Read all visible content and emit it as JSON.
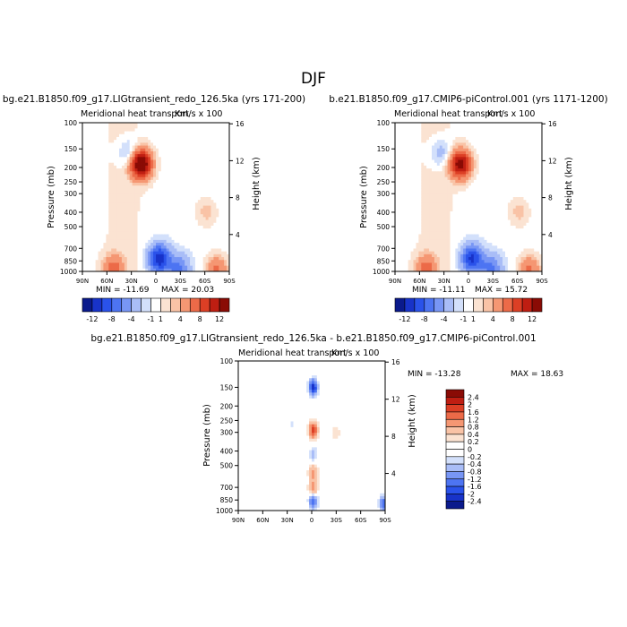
{
  "page_title": "DJF",
  "chart_data": [
    {
      "type": "heatmap",
      "title": "bg.e21.B1850.f09_g17.LIGtransient_redo_126.5ka (yrs 171-200)",
      "subtitle": "Meridional heat transport",
      "units": "Km/s x 100",
      "xlabel": "",
      "ylabel": "Pressure (mb)",
      "y2label": "Height (km)",
      "x_ticks": [
        "90N",
        "60N",
        "30N",
        "0",
        "30S",
        "60S",
        "90S"
      ],
      "y_ticks": [
        100,
        150,
        200,
        250,
        300,
        400,
        500,
        700,
        850,
        1000
      ],
      "y2_ticks": [
        4,
        8,
        12,
        16
      ],
      "ylim": [
        1000,
        100
      ],
      "min_label": "MIN = -11.69",
      "max_label": "MAX = 20.03",
      "features": [
        {
          "lat": 18,
          "p": 190,
          "value": 14
        },
        {
          "lat": 33,
          "p": 160,
          "value": -3
        },
        {
          "lat": -4,
          "p": 820,
          "value": -11
        },
        {
          "lat": -28,
          "p": 960,
          "value": -6
        },
        {
          "lat": 52,
          "p": 960,
          "value": 5
        },
        {
          "lat": -62,
          "p": 400,
          "value": 2
        },
        {
          "lat": -75,
          "p": 970,
          "value": 5
        }
      ]
    },
    {
      "type": "heatmap",
      "title": "b.e21.B1850.f09_g17.CMIP6-piControl.001 (yrs 1171-1200)",
      "subtitle": "Meridional heat transport",
      "units": "Km/s x 100",
      "xlabel": "",
      "ylabel": "Pressure (mb)",
      "y2label": "Height (km)",
      "x_ticks": [
        "90N",
        "60N",
        "30N",
        "0",
        "30S",
        "60S",
        "90S"
      ],
      "y_ticks": [
        100,
        150,
        200,
        250,
        300,
        400,
        500,
        700,
        850,
        1000
      ],
      "y2_ticks": [
        4,
        8,
        12,
        16
      ],
      "ylim": [
        1000,
        100
      ],
      "min_label": "MIN = -11.11",
      "max_label": "MAX = 15.72",
      "features": [
        {
          "lat": 10,
          "p": 190,
          "value": 12
        },
        {
          "lat": 33,
          "p": 160,
          "value": -3
        },
        {
          "lat": -4,
          "p": 820,
          "value": -10
        },
        {
          "lat": -28,
          "p": 960,
          "value": -6
        },
        {
          "lat": 52,
          "p": 960,
          "value": 5
        },
        {
          "lat": -62,
          "p": 400,
          "value": 2
        },
        {
          "lat": -75,
          "p": 970,
          "value": 5
        }
      ]
    },
    {
      "type": "heatmap",
      "title": "bg.e21.B1850.f09_g17.LIGtransient_redo_126.5ka - b.e21.B1850.f09_g17.CMIP6-piControl.001",
      "subtitle": "Meridional heat transport",
      "units": "Km/s x 100",
      "xlabel": "",
      "ylabel": "Pressure (mb)",
      "y2label": "Height (km)",
      "x_ticks": [
        "90N",
        "60N",
        "30N",
        "0",
        "30S",
        "60S",
        "90S"
      ],
      "y_ticks": [
        100,
        150,
        200,
        250,
        300,
        400,
        500,
        700,
        850,
        1000
      ],
      "y2_ticks": [
        4,
        8,
        12,
        16
      ],
      "ylim": [
        1000,
        100
      ],
      "min_label": "MIN = -13.28",
      "max_label": "MAX = 18.63",
      "features": [
        {
          "lat": -2,
          "p": 150,
          "value": -2.4
        },
        {
          "lat": -2,
          "p": 290,
          "value": 1.8
        },
        {
          "lat": -2,
          "p": 420,
          "value": -0.6
        },
        {
          "lat": -2,
          "p": 560,
          "value": 1.0
        },
        {
          "lat": -2,
          "p": 720,
          "value": 1.2
        },
        {
          "lat": -2,
          "p": 860,
          "value": -1.8
        },
        {
          "lat": 25,
          "p": 260,
          "value": -0.3
        },
        {
          "lat": -30,
          "p": 300,
          "value": 0.3
        },
        {
          "lat": -88,
          "p": 900,
          "value": -1.5
        }
      ]
    }
  ],
  "colorbars": {
    "top": {
      "labels": [
        "-12",
        "-8",
        "-4",
        "-1",
        "1",
        "4",
        "8",
        "12"
      ],
      "colors": [
        "#0a1a8c",
        "#1833c9",
        "#2a52ea",
        "#4d74f2",
        "#7896f5",
        "#a9bdf7",
        "#d3e0fb",
        "#ffffff",
        "#fbe3d2",
        "#f9c3a6",
        "#f59773",
        "#ec6a48",
        "#dc3f25",
        "#bf1e12",
        "#8a0b05"
      ]
    },
    "bottom": {
      "labels": [
        "2.4",
        "2",
        "1.6",
        "1.2",
        "0.8",
        "0.4",
        "0.2",
        "0",
        "-0.2",
        "-0.4",
        "-0.8",
        "-1.2",
        "-1.6",
        "-2",
        "-2.4"
      ],
      "colors": [
        "#8a0b05",
        "#bf1e12",
        "#dc3f25",
        "#ec6a48",
        "#f59773",
        "#f9c3a6",
        "#fbe3d2",
        "#ffffff",
        "#ffffff",
        "#d3e0fb",
        "#a9bdf7",
        "#7896f5",
        "#4d74f2",
        "#2a52ea",
        "#1833c9",
        "#0a1a8c"
      ]
    }
  }
}
